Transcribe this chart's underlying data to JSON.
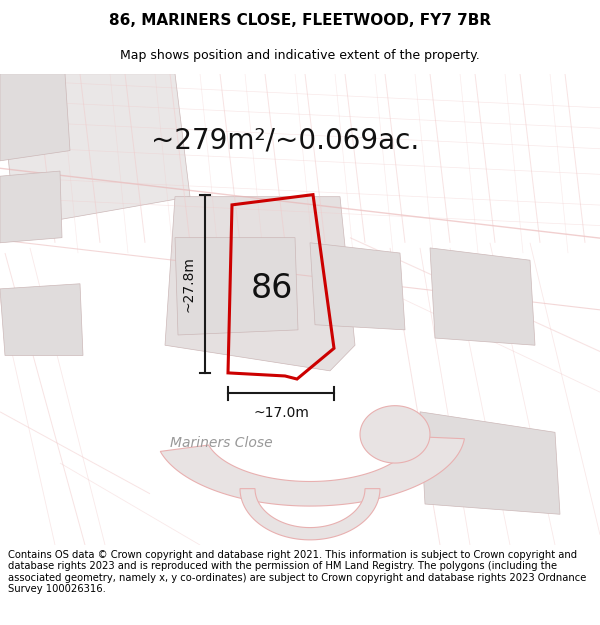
{
  "title": "86, MARINERS CLOSE, FLEETWOOD, FY7 7BR",
  "subtitle": "Map shows position and indicative extent of the property.",
  "area_label": "~279m²/~0.069ac.",
  "number_label": "86",
  "dim_width_label": "~17.0m",
  "dim_height_label": "~27.8m",
  "footer": "Contains OS data © Crown copyright and database right 2021. This information is subject to Crown copyright and database rights 2023 and is reproduced with the permission of HM Land Registry. The polygons (including the associated geometry, namely x, y co-ordinates) are subject to Crown copyright and database rights 2023 Ordnance Survey 100026316.",
  "bg_color": "#f8f5f5",
  "map_bg_color": "#f5f0f0",
  "property_outline_color": "#cc0000",
  "dim_line_color": "#1a1a1a",
  "street_label_color": "#999999",
  "pink_line": "#e8b0b0",
  "light_pink_line": "#f0c8c8",
  "building_fill": "#e0dcdc",
  "building_edge": "#ccb8b8",
  "road_fill": "#eae5e5",
  "title_fontsize": 11,
  "subtitle_fontsize": 9,
  "area_fontsize": 20,
  "number_fontsize": 24,
  "dim_fontsize": 10,
  "footer_fontsize": 7.2,
  "street_label_fontsize": 10
}
